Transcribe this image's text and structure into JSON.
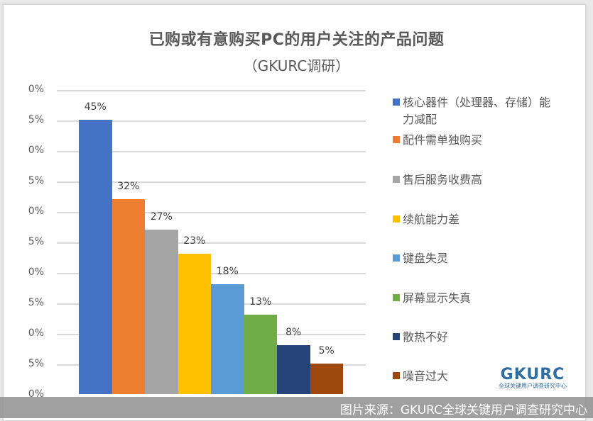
{
  "chart": {
    "title": "已购或有意购买PC的用户关注的产品问题",
    "subtitle": "（GKURC调研）",
    "y_ticks": [
      "0%",
      "5%",
      "0%",
      "5%",
      "0%",
      "5%",
      "0%",
      "5%",
      "0%",
      "5%",
      "0%"
    ],
    "bars": [
      {
        "label": "核心器件（处理器、存储）能力减配",
        "value": 45,
        "display": "45%",
        "color": "#4472c4"
      },
      {
        "label": "配件需单独购买",
        "value": 32,
        "display": "32%",
        "color": "#ed7d31"
      },
      {
        "label": "售后服务收费高",
        "value": 27,
        "display": "27%",
        "color": "#a5a5a5"
      },
      {
        "label": "续航能力差",
        "value": 23,
        "display": "23%",
        "color": "#ffc000"
      },
      {
        "label": "键盘失灵",
        "value": 18,
        "display": "18%",
        "color": "#5b9bd5"
      },
      {
        "label": "屏幕显示失真",
        "value": 13,
        "display": "13%",
        "color": "#70ad47"
      },
      {
        "label": "散热不好",
        "value": 8,
        "display": "8%",
        "color": "#264478"
      },
      {
        "label": "噪音过大",
        "value": 5,
        "display": "5%",
        "color": "#9e480e"
      }
    ],
    "legend": [
      {
        "line1": "核心器件（处理器、存储）能",
        "line2": "力减配"
      },
      {
        "line1": "配件需单独购买"
      },
      {
        "line1": "售后服务收费高"
      },
      {
        "line1": "续航能力差"
      },
      {
        "line1": "键盘失灵"
      },
      {
        "line1": "屏幕显示失真"
      },
      {
        "line1": "散热不好"
      },
      {
        "line1": "噪音过大"
      }
    ]
  },
  "logo": {
    "main": "GKURC",
    "sub": "全球关键用户调查研究中心"
  },
  "caption": "图片来源：GKURC全球关键用户调查研究中心",
  "chart_data": {
    "type": "bar",
    "title": "已购或有意购买PC的用户关注的产品问题（GKURC调研）",
    "categories": [
      "核心器件（处理器、存储）能力减配",
      "配件需单独购买",
      "售后服务收费高",
      "续航能力差",
      "键盘失灵",
      "屏幕显示失真",
      "散热不好",
      "噪音过大"
    ],
    "values": [
      45,
      32,
      27,
      23,
      18,
      13,
      8,
      5
    ],
    "unit": "%",
    "xlabel": "",
    "ylabel": "",
    "ylim": [
      0,
      50
    ],
    "y_tick_step": 5,
    "grid": true,
    "legend_position": "right",
    "data_labels": true
  }
}
